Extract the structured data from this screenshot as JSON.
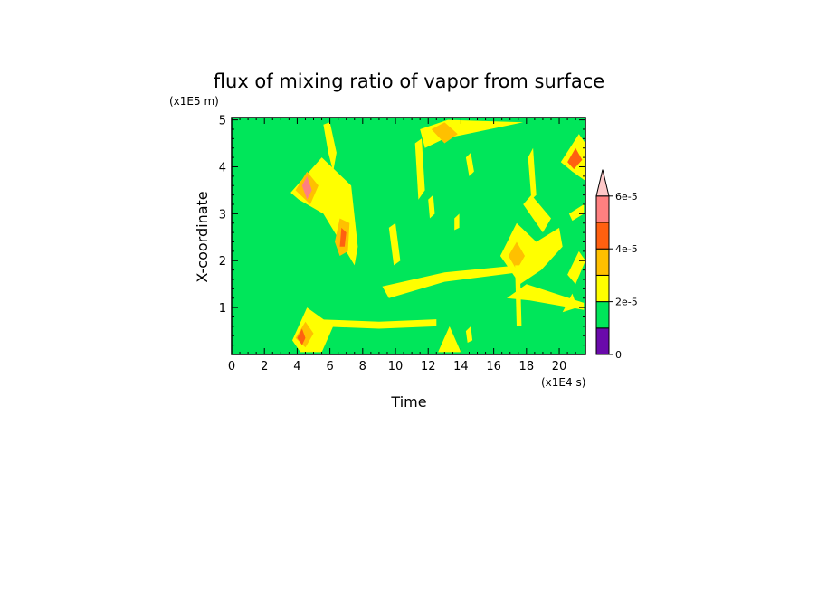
{
  "chart_data": {
    "type": "heatmap",
    "title": "flux of mixing ratio of vapor from surface",
    "xlabel": "Time",
    "ylabel": "X-coordinate",
    "x_scale_label": "(x1E4 s)",
    "y_scale_label": "(x1E5 m)",
    "xlim": [
      0,
      21.6
    ],
    "ylim": [
      0,
      5.05
    ],
    "x_ticks": [
      "0",
      "2",
      "4",
      "6",
      "8",
      "10",
      "12",
      "14",
      "16",
      "18",
      "20"
    ],
    "y_ticks": [
      "1",
      "2",
      "3",
      "4",
      "5"
    ],
    "colorbar": {
      "ticks": [
        "0",
        "2e-5",
        "4e-5",
        "6e-5"
      ],
      "tick_values": [
        0,
        2e-05,
        4e-05,
        6e-05
      ],
      "levels": [
        {
          "min": 0,
          "max": 1e-05,
          "color": "#6a0aab"
        },
        {
          "min": 1e-05,
          "max": 2e-05,
          "color": "#00e65a"
        },
        {
          "min": 2e-05,
          "max": 3e-05,
          "color": "#ffff00"
        },
        {
          "min": 3e-05,
          "max": 4e-05,
          "color": "#ffc000"
        },
        {
          "min": 4e-05,
          "max": 5e-05,
          "color": "#ff6010"
        },
        {
          "min": 5e-05,
          "max": 6e-05,
          "color": "#ff8080"
        },
        {
          "min": 6e-05,
          "max": 7e-05,
          "color": "#ffc8c8"
        }
      ],
      "extend": "max"
    },
    "background_level_color": "#00e65a",
    "features": [
      {
        "name": "diamond-upper-left",
        "kind": "poly",
        "color": "#ffff00",
        "pts": [
          [
            3.6,
            3.45
          ],
          [
            5.5,
            4.2
          ],
          [
            7.3,
            3.6
          ],
          [
            7.7,
            2.3
          ],
          [
            7.5,
            1.9
          ],
          [
            5.6,
            3.0
          ],
          [
            4.1,
            3.3
          ]
        ]
      },
      {
        "name": "diamond-core-a",
        "kind": "poly",
        "color": "#ffc000",
        "pts": [
          [
            3.9,
            3.5
          ],
          [
            4.6,
            3.9
          ],
          [
            5.3,
            3.6
          ],
          [
            4.8,
            3.2
          ]
        ]
      },
      {
        "name": "diamond-core-b",
        "kind": "poly",
        "color": "#ff8080",
        "pts": [
          [
            4.3,
            3.6
          ],
          [
            4.6,
            3.8
          ],
          [
            4.9,
            3.5
          ],
          [
            4.6,
            3.3
          ]
        ]
      },
      {
        "name": "diamond-core-c",
        "kind": "poly",
        "color": "#ffc000",
        "pts": [
          [
            6.6,
            2.9
          ],
          [
            7.2,
            2.8
          ],
          [
            7.1,
            2.2
          ],
          [
            6.6,
            2.1
          ],
          [
            6.3,
            2.4
          ]
        ]
      },
      {
        "name": "diamond-core-d",
        "kind": "poly",
        "color": "#ff6010",
        "pts": [
          [
            6.7,
            2.7
          ],
          [
            7.0,
            2.6
          ],
          [
            6.9,
            2.3
          ],
          [
            6.6,
            2.3
          ]
        ]
      },
      {
        "name": "upper-ridge",
        "kind": "poly",
        "color": "#ffff00",
        "pts": [
          [
            5.6,
            4.9
          ],
          [
            6.0,
            4.95
          ],
          [
            6.4,
            4.3
          ],
          [
            6.2,
            3.9
          ],
          [
            5.9,
            4.3
          ]
        ]
      },
      {
        "name": "ridge-top-band",
        "kind": "poly",
        "color": "#ffff00",
        "pts": [
          [
            11.5,
            4.8
          ],
          [
            13.2,
            5.0
          ],
          [
            17.8,
            4.95
          ],
          [
            13.0,
            4.6
          ],
          [
            11.8,
            4.4
          ]
        ]
      },
      {
        "name": "ridge-top-core",
        "kind": "poly",
        "color": "#ffc000",
        "pts": [
          [
            12.2,
            4.8
          ],
          [
            13.0,
            4.95
          ],
          [
            13.8,
            4.7
          ],
          [
            13.0,
            4.5
          ]
        ]
      },
      {
        "name": "mid-band-12",
        "kind": "poly",
        "color": "#ffff00",
        "pts": [
          [
            9.2,
            1.45
          ],
          [
            13.0,
            1.75
          ],
          [
            17.5,
            1.9
          ],
          [
            17.5,
            1.75
          ],
          [
            13.0,
            1.55
          ],
          [
            9.6,
            1.2
          ]
        ]
      },
      {
        "name": "lower-band-13",
        "kind": "poly",
        "color": "#ffff00",
        "pts": [
          [
            5.2,
            0.75
          ],
          [
            9.0,
            0.7
          ],
          [
            12.5,
            0.75
          ],
          [
            12.5,
            0.6
          ],
          [
            9.0,
            0.55
          ],
          [
            5.3,
            0.6
          ]
        ]
      },
      {
        "name": "lower-left-fan",
        "kind": "poly",
        "color": "#ffff00",
        "pts": [
          [
            3.7,
            0.3
          ],
          [
            4.6,
            1.0
          ],
          [
            6.2,
            0.6
          ],
          [
            5.5,
            0.05
          ],
          [
            4.2,
            0.05
          ]
        ]
      },
      {
        "name": "lower-left-core",
        "kind": "poly",
        "color": "#ffc000",
        "pts": [
          [
            3.9,
            0.35
          ],
          [
            4.5,
            0.7
          ],
          [
            5.0,
            0.45
          ],
          [
            4.5,
            0.15
          ]
        ]
      },
      {
        "name": "lower-left-core-red",
        "kind": "poly",
        "color": "#ff6010",
        "pts": [
          [
            4.0,
            0.35
          ],
          [
            4.3,
            0.55
          ],
          [
            4.5,
            0.35
          ],
          [
            4.3,
            0.2
          ]
        ]
      },
      {
        "name": "right-diamond-17",
        "kind": "poly",
        "color": "#ffff00",
        "pts": [
          [
            16.4,
            2.1
          ],
          [
            17.4,
            2.8
          ],
          [
            18.6,
            2.4
          ],
          [
            20.0,
            2.7
          ],
          [
            20.2,
            2.3
          ],
          [
            18.9,
            1.8
          ],
          [
            17.6,
            1.5
          ]
        ]
      },
      {
        "name": "right-diamond-core",
        "kind": "poly",
        "color": "#ffc000",
        "pts": [
          [
            16.9,
            2.1
          ],
          [
            17.4,
            2.4
          ],
          [
            17.9,
            2.1
          ],
          [
            17.4,
            1.8
          ]
        ]
      },
      {
        "name": "right-lower-band",
        "kind": "poly",
        "color": "#ffff00",
        "pts": [
          [
            16.8,
            1.2
          ],
          [
            18.0,
            1.5
          ],
          [
            21.5,
            1.1
          ],
          [
            21.5,
            0.95
          ],
          [
            18.2,
            1.15
          ]
        ]
      },
      {
        "name": "far-right-upper",
        "kind": "poly",
        "color": "#ffff00",
        "pts": [
          [
            20.1,
            4.1
          ],
          [
            21.2,
            4.7
          ],
          [
            21.6,
            4.5
          ],
          [
            21.6,
            3.7
          ],
          [
            20.8,
            3.9
          ]
        ]
      },
      {
        "name": "far-right-upper-core",
        "kind": "poly",
        "color": "#ff6010",
        "pts": [
          [
            20.5,
            4.1
          ],
          [
            21.0,
            4.4
          ],
          [
            21.4,
            4.15
          ],
          [
            20.9,
            3.95
          ]
        ]
      },
      {
        "name": "streak-10-2",
        "kind": "poly",
        "color": "#ffff00",
        "pts": [
          [
            9.6,
            2.7
          ],
          [
            10.0,
            2.8
          ],
          [
            10.3,
            2.0
          ],
          [
            9.9,
            1.9
          ]
        ]
      },
      {
        "name": "streak-12-5",
        "kind": "poly",
        "color": "#ffff00",
        "pts": [
          [
            11.2,
            4.5
          ],
          [
            11.6,
            4.6
          ],
          [
            11.8,
            3.5
          ],
          [
            11.4,
            3.3
          ]
        ]
      },
      {
        "name": "streak-17-vertical",
        "kind": "poly",
        "color": "#ffff00",
        "pts": [
          [
            17.3,
            1.9
          ],
          [
            17.6,
            1.9
          ],
          [
            17.7,
            0.6
          ],
          [
            17.4,
            0.6
          ]
        ]
      },
      {
        "name": "streak-13-lower",
        "kind": "poly",
        "color": "#ffff00",
        "pts": [
          [
            12.6,
            0.05
          ],
          [
            13.3,
            0.6
          ],
          [
            14.0,
            0.05
          ]
        ]
      },
      {
        "name": "streak-19-3",
        "kind": "poly",
        "color": "#ffff00",
        "pts": [
          [
            17.8,
            3.2
          ],
          [
            18.3,
            3.4
          ],
          [
            19.5,
            2.9
          ],
          [
            19.0,
            2.6
          ]
        ]
      },
      {
        "name": "streak-18-4",
        "kind": "poly",
        "color": "#ffff00",
        "pts": [
          [
            18.1,
            4.2
          ],
          [
            18.4,
            4.4
          ],
          [
            18.6,
            3.4
          ],
          [
            18.3,
            3.3
          ]
        ]
      },
      {
        "name": "streak-15-right",
        "kind": "poly",
        "color": "#ffff00",
        "pts": [
          [
            14.3,
            4.2
          ],
          [
            14.6,
            4.3
          ],
          [
            14.8,
            3.9
          ],
          [
            14.5,
            3.8
          ]
        ]
      },
      {
        "name": "speck-21-4",
        "kind": "poly",
        "color": "#ffff00",
        "pts": [
          [
            20.6,
            3.0
          ],
          [
            21.5,
            3.2
          ],
          [
            21.5,
            3.0
          ],
          [
            20.8,
            2.85
          ]
        ]
      },
      {
        "name": "speck-21-2",
        "kind": "poly",
        "color": "#ffff00",
        "pts": [
          [
            20.5,
            1.7
          ],
          [
            21.2,
            2.2
          ],
          [
            21.6,
            2.0
          ],
          [
            21.0,
            1.5
          ]
        ]
      },
      {
        "name": "speck-20-1",
        "kind": "poly",
        "color": "#ffff00",
        "pts": [
          [
            20.2,
            0.9
          ],
          [
            20.8,
            1.3
          ],
          [
            21.1,
            1.0
          ]
        ]
      },
      {
        "name": "speck-11-5",
        "kind": "poly",
        "color": "#ffff00",
        "pts": [
          [
            12.0,
            3.3
          ],
          [
            12.3,
            3.4
          ],
          [
            12.4,
            3.0
          ],
          [
            12.1,
            2.9
          ]
        ]
      },
      {
        "name": "speck-13-2",
        "kind": "poly",
        "color": "#ffff00",
        "pts": [
          [
            13.6,
            2.9
          ],
          [
            13.9,
            3.0
          ],
          [
            13.9,
            2.7
          ],
          [
            13.6,
            2.65
          ]
        ]
      },
      {
        "name": "speck-14-1",
        "kind": "poly",
        "color": "#ffff00",
        "pts": [
          [
            14.3,
            0.5
          ],
          [
            14.6,
            0.6
          ],
          [
            14.7,
            0.3
          ],
          [
            14.4,
            0.25
          ]
        ]
      }
    ]
  }
}
